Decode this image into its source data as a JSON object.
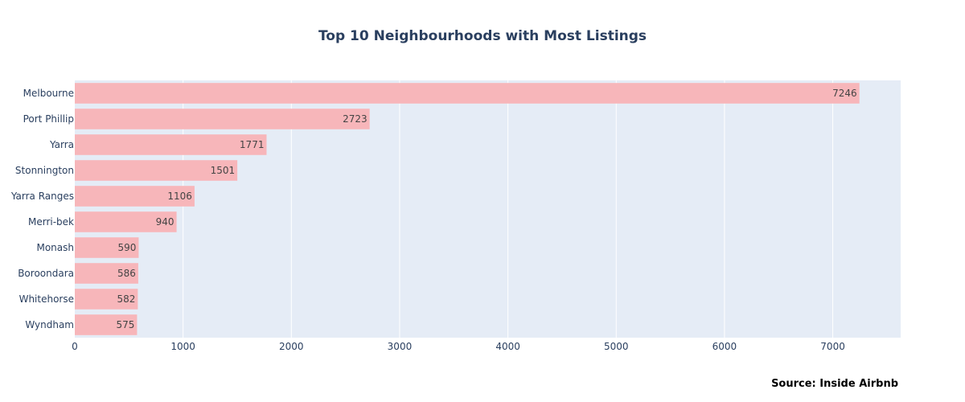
{
  "chart_data": {
    "type": "bar",
    "orientation": "horizontal",
    "title": "Top 10 Neighbourhoods with Most Listings",
    "xlabel": "",
    "ylabel": "",
    "categories": [
      "Melbourne",
      "Port Phillip",
      "Yarra",
      "Stonnington",
      "Yarra Ranges",
      "Merri-bek",
      "Monash",
      "Boroondara",
      "Whitehorse",
      "Wyndham"
    ],
    "values": [
      7246,
      2723,
      1771,
      1501,
      1106,
      940,
      590,
      586,
      582,
      575
    ],
    "xlim": [
      0,
      7627
    ],
    "x_ticks": [
      0,
      1000,
      2000,
      3000,
      4000,
      5000,
      6000,
      7000
    ],
    "grid": true,
    "data_labels": "inside-end",
    "colors": {
      "bar": "#f7b6ba",
      "plot_bg": "#e5ecf6",
      "grid": "#ffffff",
      "text": "#2a3f5f"
    },
    "annotation": "Source: Inside Airbnb"
  }
}
